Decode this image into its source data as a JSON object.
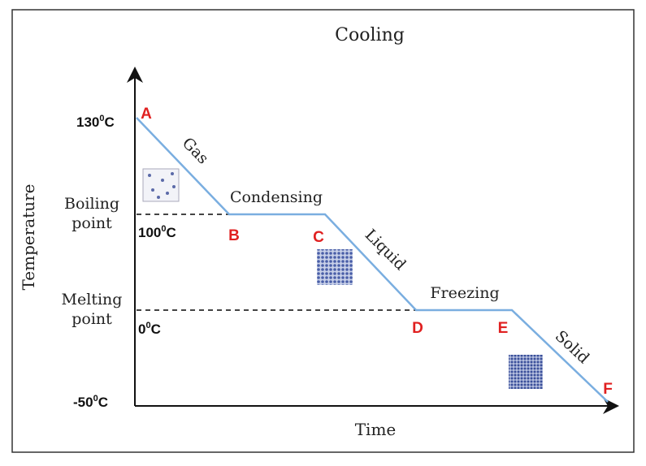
{
  "title": "Cooling",
  "y_axis_label": "Temperature",
  "x_axis_label": "Time",
  "temperatures": [
    {
      "value": "130",
      "sup": "0",
      "unit": "C"
    },
    {
      "value": "100",
      "sup": "0",
      "unit": "C"
    },
    {
      "value": "0",
      "sup": "0",
      "unit": "C"
    },
    {
      "value": "-50",
      "sup": "0",
      "unit": "C"
    }
  ],
  "levels": [
    {
      "line1": "Boiling",
      "line2": "point"
    },
    {
      "line1": "Melting",
      "line2": "point"
    }
  ],
  "points": [
    "A",
    "B",
    "C",
    "D",
    "E",
    "F"
  ],
  "segments": [
    "Gas",
    "Condensing",
    "Liquid",
    "Freezing",
    "Solid"
  ]
}
